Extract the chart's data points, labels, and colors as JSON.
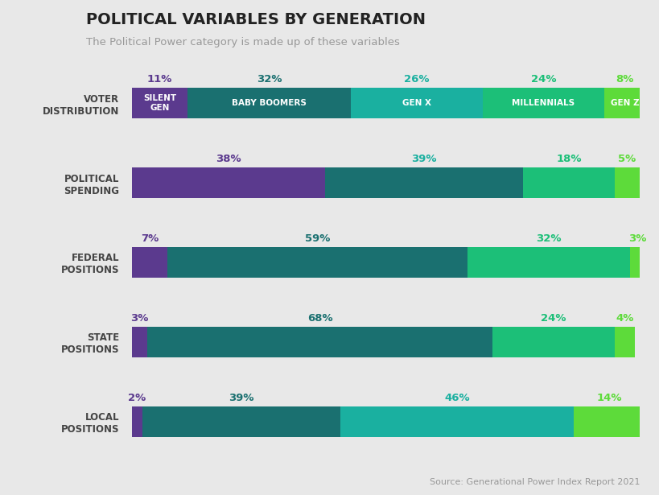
{
  "title": "POLITICAL VARIABLES BY GENERATION",
  "subtitle": "The Political Power category is made up of these variables",
  "source": "Source: Generational Power Index Report 2021",
  "background_color": "#e8e8e8",
  "categories": [
    "VOTER\nDISTRIBUTION",
    "POLITICAL\nSPENDING",
    "FEDERAL\nPOSITIONS",
    "STATE\nPOSITIONS",
    "LOCAL\nPOSITIONS"
  ],
  "gen_labels_bar": [
    "SILENT\nGEN",
    "BABY BOOMERS",
    "GEN X",
    "MILLENNIALS",
    "GEN Z"
  ],
  "data": [
    [
      11,
      32,
      26,
      24,
      8
    ],
    [
      38,
      39,
      18,
      5,
      0
    ],
    [
      7,
      59,
      32,
      3,
      0
    ],
    [
      3,
      68,
      24,
      4,
      0
    ],
    [
      2,
      39,
      46,
      14,
      0
    ]
  ],
  "bar_colors": [
    [
      "#5b3a8e",
      "#1a7070",
      "#1ab0a0",
      "#1cbf78",
      "#5ddb3a"
    ],
    [
      "#5b3a8e",
      "#1a7070",
      "#1cbf78",
      "#5ddb3a",
      null
    ],
    [
      "#5b3a8e",
      "#1a7070",
      "#1cbf78",
      "#5ddb3a",
      null
    ],
    [
      "#5b3a8e",
      "#1a7070",
      "#1cbf78",
      "#5ddb3a",
      null
    ],
    [
      "#5b3a8e",
      "#1a7070",
      "#1ab0a0",
      "#5ddb3a",
      null
    ]
  ],
  "pct_colors": [
    [
      "#5b3a8e",
      "#1a7070",
      "#1ab0a0",
      "#1cbf78",
      "#5ddb3a"
    ],
    [
      "#5b3a8e",
      "#1ab0a0",
      "#1cbf78",
      "#5ddb3a",
      null
    ],
    [
      "#5b3a8e",
      "#1a7070",
      "#1cbf78",
      "#5ddb3a",
      null
    ],
    [
      "#5b3a8e",
      "#1a7070",
      "#1cbf78",
      "#5ddb3a",
      null
    ],
    [
      "#5b3a8e",
      "#1a7070",
      "#1ab0a0",
      "#5ddb3a",
      null
    ]
  ],
  "bar_height": 0.38,
  "title_fontsize": 14,
  "subtitle_fontsize": 9.5,
  "ylabel_fontsize": 8.5,
  "pct_fontsize": 9.5,
  "inner_label_fontsize": 7.5
}
